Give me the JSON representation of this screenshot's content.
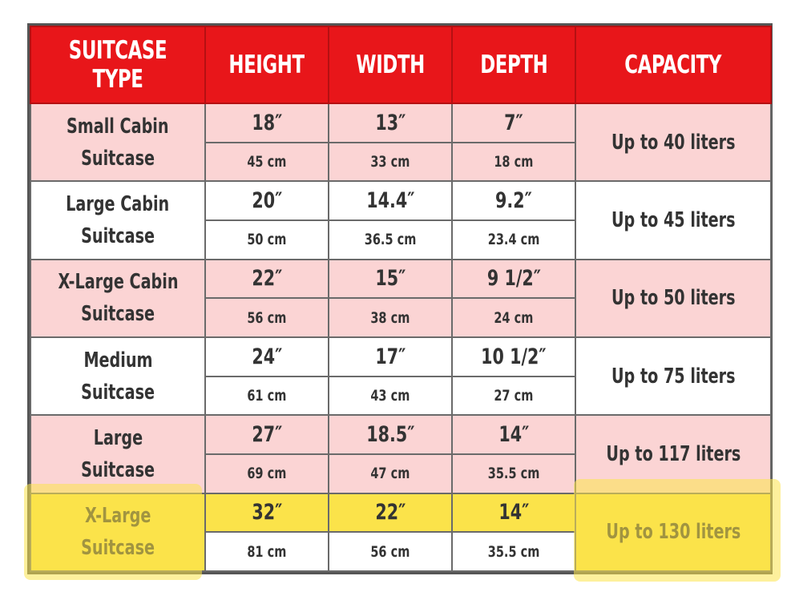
{
  "headers": [
    "SUITCASE TYPE",
    "HEIGHT",
    "WIDTH",
    "DEPTH",
    "CAPACITY"
  ],
  "rows": [
    {
      "type_line1": "Small Cabin",
      "type_line2": "Suitcase",
      "height_in": "18″",
      "width_in": "13″",
      "depth_in": "7″",
      "height_cm": "45 cm",
      "width_cm": "33 cm",
      "depth_cm": "18 cm",
      "capacity": "Up to 40 liters"
    },
    {
      "type_line1": "Large Cabin",
      "type_line2": "Suitcase",
      "height_in": "20″",
      "width_in": "14.4″",
      "depth_in": "9.2″",
      "height_cm": "50 cm",
      "width_cm": "36.5 cm",
      "depth_cm": "23.4 cm",
      "capacity": "Up to 45 liters"
    },
    {
      "type_line1": "X-Large Cabin",
      "type_line2": "Suitcase",
      "height_in": "22″",
      "width_in": "15″",
      "depth_in": "9 1/2″",
      "height_cm": "56 cm",
      "width_cm": "38 cm",
      "depth_cm": "24 cm",
      "capacity": "Up to 50 liters"
    },
    {
      "type_line1": "Medium",
      "type_line2": "Suitcase",
      "height_in": "24″",
      "width_in": "17″",
      "depth_in": "10 1/2″",
      "height_cm": "61 cm",
      "width_cm": "43 cm",
      "depth_cm": "27 cm",
      "capacity": "Up to 75 liters"
    },
    {
      "type_line1": "Large",
      "type_line2": "Suitcase",
      "height_in": "27″",
      "width_in": "18.5″",
      "depth_in": "14″",
      "height_cm": "69 cm",
      "width_cm": "47 cm",
      "depth_cm": "35.5 cm",
      "capacity": "Up to 117 liters"
    },
    {
      "type_line1": "X-Large",
      "type_line2": "Suitcase",
      "height_in": "32″",
      "width_in": "22″",
      "depth_in": "14″",
      "height_cm": "81 cm",
      "width_cm": "56 cm",
      "depth_cm": "35.5 cm",
      "capacity": "Up to 130 liters"
    }
  ],
  "colors": {
    "header_bg": "#e8161a",
    "header_text": "#ffffff",
    "pink_row": "#fbd4d4",
    "white_row": "#ffffff",
    "highlight": "#fbe34a",
    "text": "#333333",
    "border": "#6a6a6a"
  }
}
